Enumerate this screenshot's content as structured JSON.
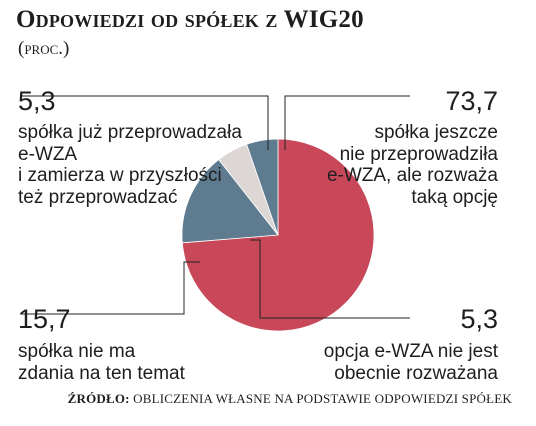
{
  "header": {
    "title": "Odpowiedzi od spółek z WIG20",
    "subtitle": "(proc.)"
  },
  "chart_data": {
    "type": "pie",
    "title": "Odpowiedzi od spółek z WIG20",
    "subtitle": "(proc.)",
    "slices": [
      {
        "label": "spółka jeszcze nie przeprowadziła e-WZA, ale rozważa taką opcję",
        "value": 73.7,
        "value_label": "73,7",
        "color": "#c8485a"
      },
      {
        "label": "spółka nie ma zdania na ten temat",
        "value": 15.7,
        "value_label": "15,7",
        "color": "#5e7b90"
      },
      {
        "label": "opcja e-WZA nie jest obecnie rozważana",
        "value": 5.3,
        "value_label": "5,3",
        "color": "#dcd6d5"
      },
      {
        "label": "spółka już przeprowadzała e-WZA i zamierza w przyszłości też przeprowadzać",
        "value": 5.3,
        "value_label": "5,3",
        "color": "#5e7b90"
      }
    ],
    "legend": "none"
  },
  "annotations": {
    "top_left": {
      "value": "5,3",
      "lines": [
        "spółka już przeprowadzała",
        "e-WZA",
        "i zamierza w przyszłości",
        "też przeprowadzać"
      ]
    },
    "top_right": {
      "value": "73,7",
      "lines": [
        "spółka jeszcze",
        "nie przeprowadziła",
        "e-WZA, ale rozważa",
        "taką opcję"
      ]
    },
    "bottom_left": {
      "value": "15,7",
      "lines": [
        "spółka nie ma",
        "zdania na ten temat"
      ]
    },
    "bottom_right": {
      "value": "5,3",
      "lines": [
        "opcja e-WZA nie jest",
        "obecnie rozważana"
      ]
    }
  },
  "footer": {
    "source_label": "ŹRÓDŁO:",
    "source_text": "OBLICZENIA WŁASNE NA PODSTAWIE ODPOWIEDZI SPÓŁEK"
  }
}
